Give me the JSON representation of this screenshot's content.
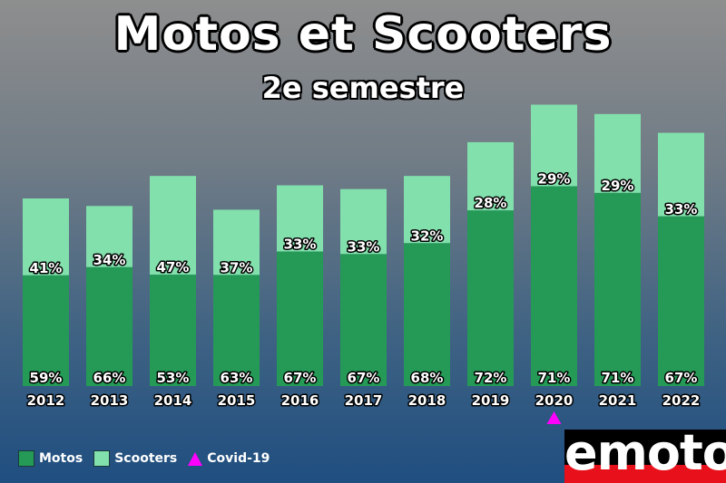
{
  "header": {
    "title": "Motos et Scooters",
    "subtitle": "2e semestre"
  },
  "colors": {
    "motos": "#259a57",
    "scooters": "#82e0ac",
    "covid": "#ff00ff"
  },
  "legend": {
    "motos_label": "Motos",
    "scooters_label": "Scooters",
    "covid_label": "Covid-19"
  },
  "logo": {
    "text": "emoto"
  },
  "chart_data": {
    "type": "bar",
    "stacked": true,
    "title": "Motos et Scooters",
    "subtitle": "2e semestre",
    "categories": [
      "2012",
      "2013",
      "2014",
      "2015",
      "2016",
      "2017",
      "2018",
      "2019",
      "2020",
      "2021",
      "2022"
    ],
    "totals_relative": [
      1.0,
      0.96,
      1.12,
      0.94,
      1.07,
      1.05,
      1.12,
      1.3,
      1.5,
      1.45,
      1.35
    ],
    "series": [
      {
        "name": "Motos",
        "values": [
          59,
          66,
          53,
          63,
          67,
          67,
          68,
          72,
          71,
          71,
          67
        ],
        "labels": [
          "59%",
          "66%",
          "53%",
          "63%",
          "67%",
          "67%",
          "68%",
          "72%",
          "71%",
          "71%",
          "67%"
        ]
      },
      {
        "name": "Scooters",
        "values": [
          41,
          34,
          47,
          37,
          33,
          33,
          32,
          28,
          29,
          29,
          33
        ],
        "labels": [
          "41%",
          "34%",
          "47%",
          "37%",
          "33%",
          "33%",
          "32%",
          "28%",
          "29%",
          "29%",
          "33%"
        ]
      }
    ],
    "annotations": [
      {
        "category": "2020",
        "marker": "triangle",
        "label": "Covid-19"
      }
    ],
    "legend": "bottom-left",
    "grid": false
  }
}
